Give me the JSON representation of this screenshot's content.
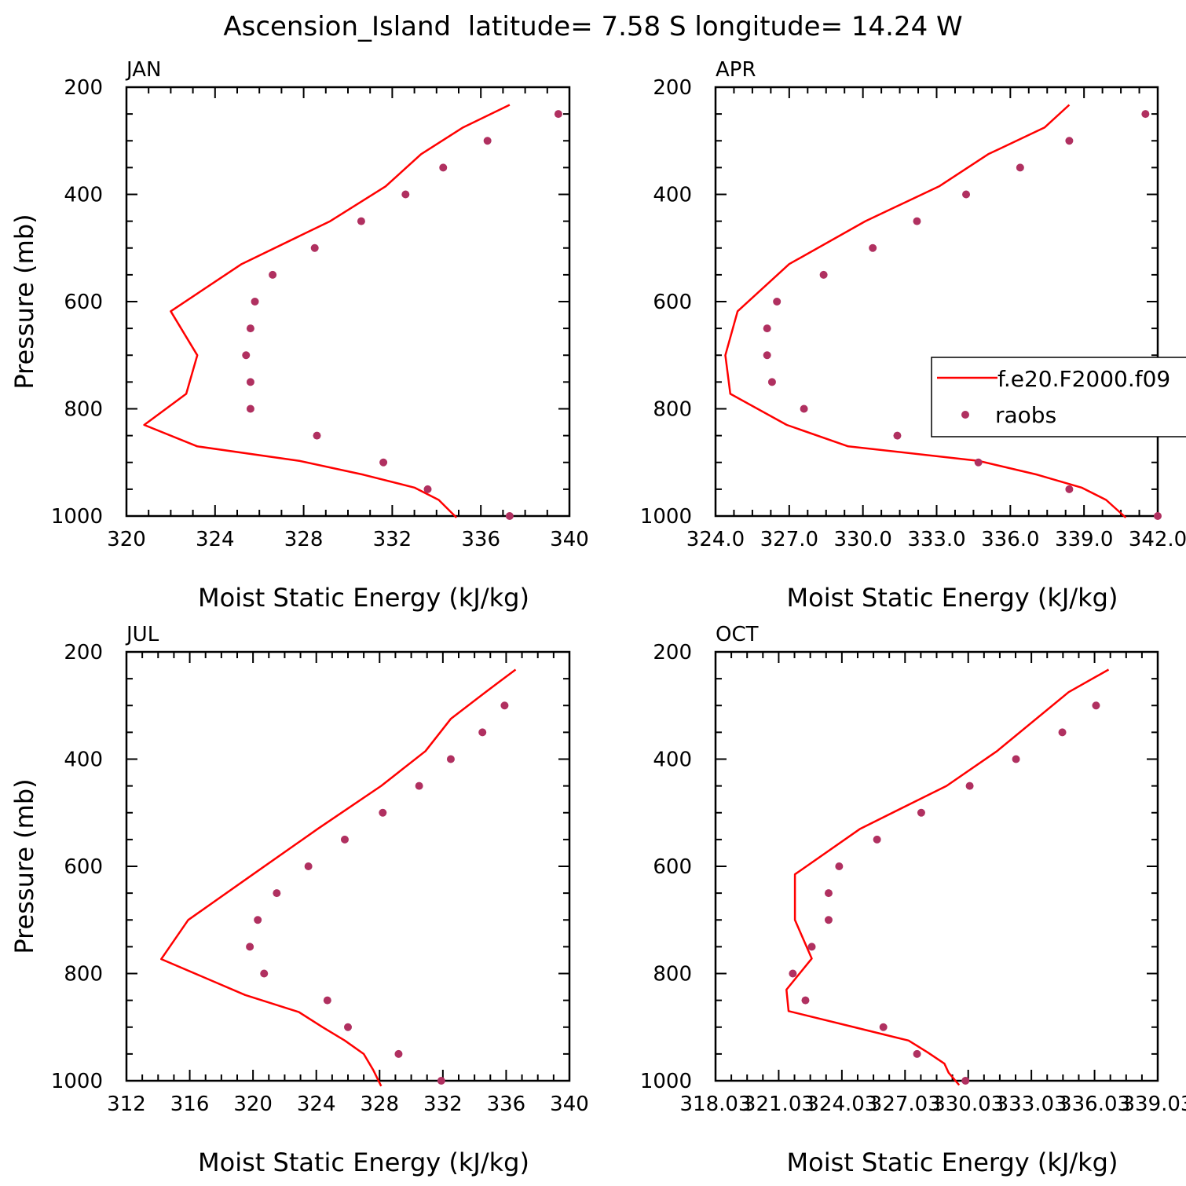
{
  "title": "Ascension_Island  latitude= 7.58 S longitude= 14.24 W",
  "colors": {
    "model_line": "#ff0000",
    "raobs_marker": "#b03060",
    "axis": "#000000"
  },
  "legend": {
    "entries": [
      {
        "label": "f.e20.F2000.f09",
        "style": "line"
      },
      {
        "label": "raobs",
        "style": "marker"
      }
    ]
  },
  "chart_data": [
    {
      "type": "line",
      "panel_label": "JAN",
      "xlabel": "Moist Static Energy (kJ/kg)",
      "ylabel": "Pressure (mb)",
      "xlim": [
        320,
        340
      ],
      "ylim": [
        1000,
        200
      ],
      "xticks": [
        320,
        324,
        328,
        332,
        336,
        340
      ],
      "xtick_labels": [
        "320",
        "324",
        "328",
        "332",
        "336",
        "340"
      ],
      "yticks": [
        200,
        400,
        600,
        800,
        1000
      ],
      "ytick_labels": [
        "200",
        "400",
        "600",
        "800",
        "1000"
      ],
      "series": [
        {
          "name": "f.e20.F2000.f09",
          "kind": "line",
          "x": [
            334.9,
            334.1,
            333.0,
            330.7,
            327.8,
            323.2,
            320.8,
            322.7,
            323.2,
            322.0,
            325.2,
            329.2,
            331.7,
            333.3,
            335.2,
            337.3
          ],
          "y": [
            1003,
            970,
            947,
            923,
            897,
            870,
            830,
            772,
            700,
            618,
            530,
            450,
            385,
            325,
            275,
            233
          ]
        },
        {
          "name": "raobs",
          "kind": "marker",
          "x": [
            339.5,
            336.3,
            334.3,
            332.6,
            330.6,
            328.5,
            326.6,
            325.8,
            325.6,
            325.4,
            325.6,
            325.6,
            328.6,
            331.6,
            333.6,
            337.3
          ],
          "y": [
            250,
            300,
            350,
            400,
            450,
            500,
            550,
            600,
            650,
            700,
            750,
            800,
            850,
            900,
            950,
            1000
          ]
        }
      ]
    },
    {
      "type": "line",
      "panel_label": "APR",
      "xlabel": "Moist Static Energy (kJ/kg)",
      "ylabel": "",
      "xlim": [
        324,
        342
      ],
      "ylim": [
        1000,
        200
      ],
      "xticks": [
        324,
        327,
        330,
        333,
        336,
        339,
        342
      ],
      "xtick_labels": [
        "324.0",
        "327.0",
        "330.0",
        "333.0",
        "336.0",
        "339.0",
        "342.0"
      ],
      "yticks": [
        200,
        400,
        600,
        800,
        1000
      ],
      "ytick_labels": [
        "200",
        "400",
        "600",
        "800",
        "1000"
      ],
      "series": [
        {
          "name": "f.e20.F2000.f09",
          "kind": "line",
          "x": [
            340.7,
            339.9,
            338.9,
            337.1,
            334.7,
            329.4,
            326.9,
            324.6,
            324.4,
            324.9,
            327.0,
            330.1,
            333.1,
            335.1,
            337.4,
            338.4
          ],
          "y": [
            1003,
            970,
            947,
            923,
            897,
            870,
            830,
            772,
            700,
            618,
            530,
            450,
            385,
            325,
            275,
            233
          ]
        },
        {
          "name": "raobs",
          "kind": "marker",
          "x": [
            341.5,
            338.4,
            336.4,
            334.2,
            332.2,
            330.4,
            328.4,
            326.5,
            326.1,
            326.1,
            326.3,
            327.6,
            331.4,
            334.7,
            338.4,
            342.0
          ],
          "y": [
            250,
            300,
            350,
            400,
            450,
            500,
            550,
            600,
            650,
            700,
            750,
            800,
            850,
            900,
            950,
            1000
          ]
        }
      ]
    },
    {
      "type": "line",
      "panel_label": "JUL",
      "xlabel": "Moist Static Energy (kJ/kg)",
      "ylabel": "Pressure (mb)",
      "xlim": [
        312,
        340
      ],
      "ylim": [
        1000,
        200
      ],
      "xticks": [
        312,
        316,
        320,
        324,
        328,
        332,
        336,
        340
      ],
      "xtick_labels": [
        "312",
        "316",
        "320",
        "324",
        "328",
        "332",
        "336",
        "340"
      ],
      "yticks": [
        200,
        400,
        600,
        800,
        1000
      ],
      "ytick_labels": [
        "200",
        "400",
        "600",
        "800",
        "1000"
      ],
      "series": [
        {
          "name": "f.e20.F2000.f09",
          "kind": "line",
          "x": [
            328.1,
            327.6,
            327.0,
            325.8,
            324.4,
            322.9,
            319.5,
            314.2,
            315.9,
            320.0,
            324.1,
            328.1,
            330.9,
            332.5,
            334.7,
            336.6
          ],
          "y": [
            1010,
            980,
            950,
            925,
            900,
            872,
            840,
            773,
            700,
            615,
            530,
            450,
            385,
            325,
            275,
            233
          ]
        },
        {
          "name": "raobs",
          "kind": "marker",
          "x": [
            335.9,
            334.5,
            332.5,
            330.5,
            328.2,
            325.8,
            323.5,
            321.5,
            320.3,
            319.8,
            320.7,
            324.7,
            326.0,
            329.2,
            331.9
          ],
          "y": [
            300,
            350,
            400,
            450,
            500,
            550,
            600,
            650,
            700,
            750,
            800,
            850,
            900,
            950,
            1000
          ]
        }
      ]
    },
    {
      "type": "line",
      "panel_label": "OCT",
      "xlabel": "Moist Static Energy (kJ/kg)",
      "ylabel": "",
      "xlim": [
        318.03,
        339.03
      ],
      "ylim": [
        1000,
        200
      ],
      "xticks": [
        318.03,
        321.03,
        324.03,
        327.03,
        330.03,
        333.03,
        336.03,
        339.03
      ],
      "xtick_labels": [
        "318.03",
        "321.03",
        "324.03",
        "327.03",
        "330.03",
        "333.03",
        "336.03",
        "339.03"
      ],
      "yticks": [
        200,
        400,
        600,
        800,
        1000
      ],
      "ytick_labels": [
        "200",
        "400",
        "600",
        "800",
        "1000"
      ],
      "series": [
        {
          "name": "f.e20.F2000.f09",
          "kind": "line",
          "x": [
            329.6,
            329.1,
            328.9,
            328.1,
            327.2,
            324.4,
            321.5,
            321.4,
            322.6,
            321.8,
            321.8,
            324.9,
            329.0,
            331.4,
            334.8,
            336.7
          ],
          "y": [
            1008,
            985,
            968,
            947,
            925,
            898,
            870,
            830,
            772,
            700,
            615,
            530,
            450,
            385,
            275,
            233
          ]
        },
        {
          "name": "raobs",
          "kind": "marker",
          "x": [
            336.1,
            334.5,
            332.3,
            330.1,
            327.8,
            325.7,
            323.9,
            323.4,
            323.4,
            322.6,
            321.7,
            322.3,
            326.0,
            327.6,
            329.9
          ],
          "y": [
            300,
            350,
            400,
            450,
            500,
            550,
            600,
            650,
            700,
            750,
            800,
            850,
            900,
            950,
            1000
          ]
        }
      ]
    }
  ]
}
